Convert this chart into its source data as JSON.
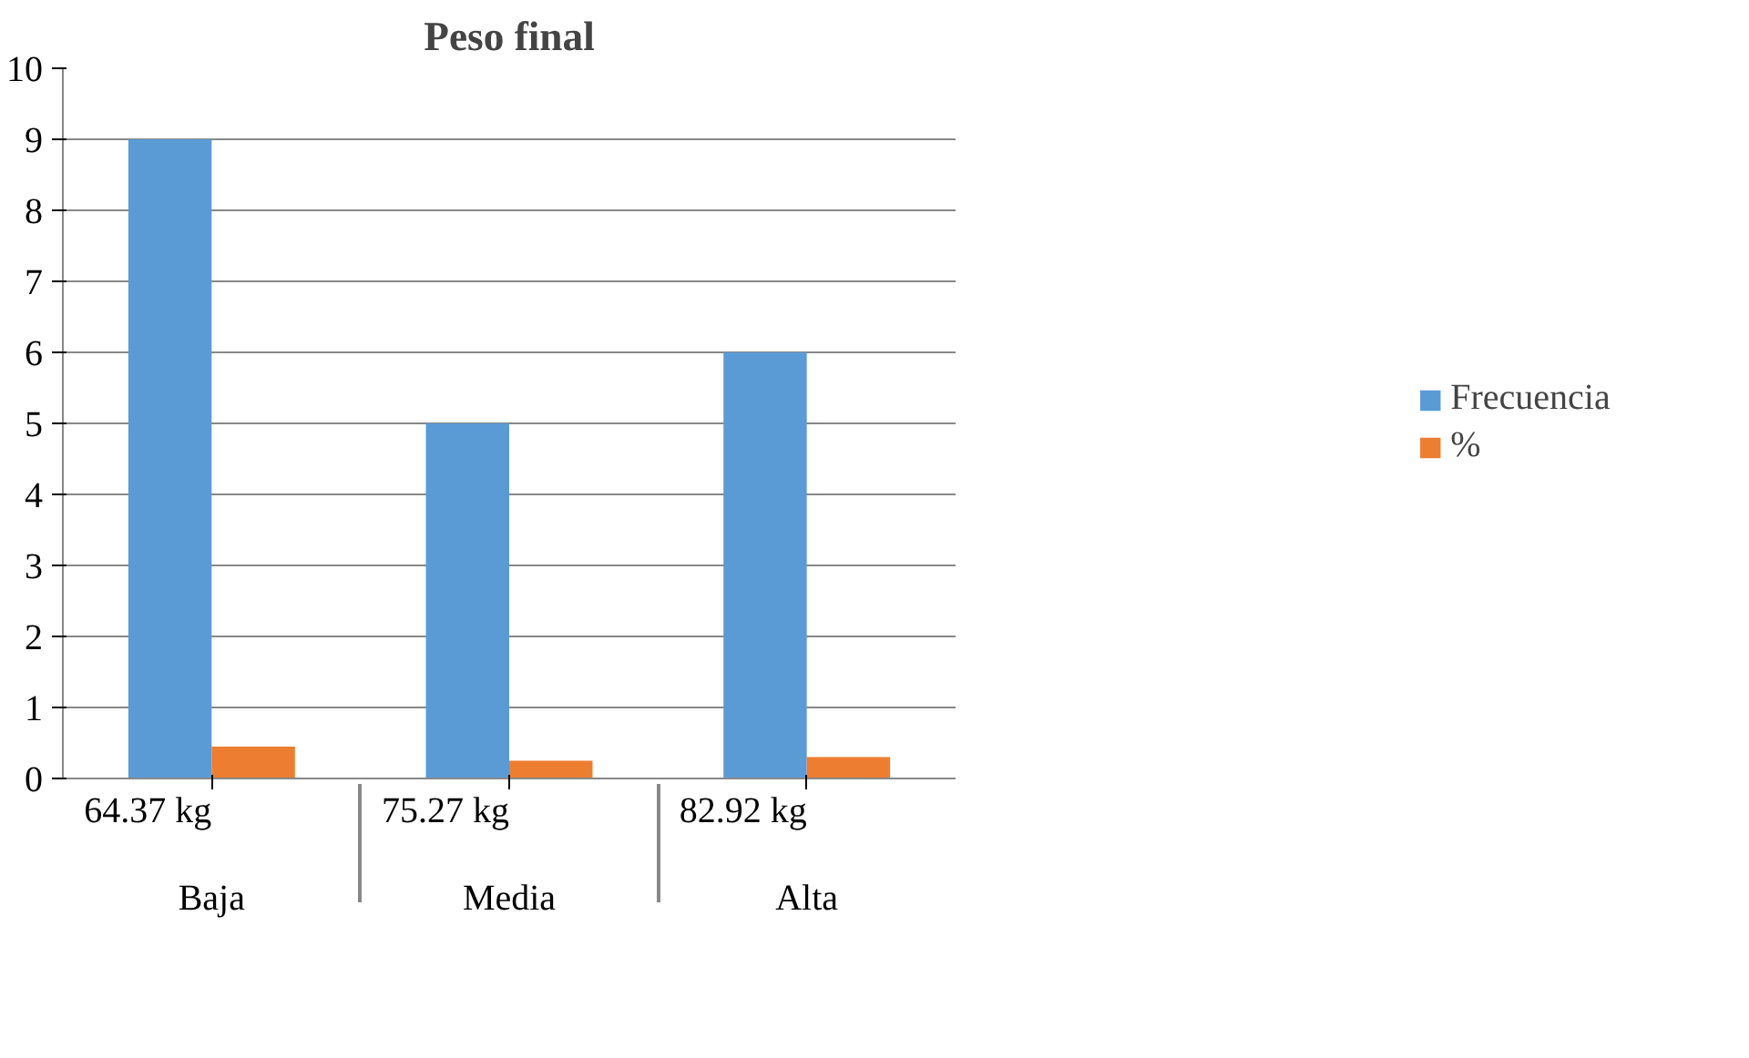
{
  "chart_data": {
    "type": "bar",
    "title": "Peso final",
    "categories": [
      "64.37 kg\nBaja",
      "75.27 kg\nMedia",
      "82.92 kg\nAlta"
    ],
    "series": [
      {
        "name": "Frecuencia",
        "color": "#5b9bd5",
        "values": [
          9,
          5,
          6
        ]
      },
      {
        "name": "%",
        "color": "#ed7d31",
        "values": [
          0.45,
          0.25,
          0.3
        ]
      }
    ],
    "ylim": [
      0,
      10
    ],
    "yticks": [
      0,
      1,
      2,
      3,
      4,
      5,
      6,
      7,
      8,
      9,
      10
    ],
    "grid": "y",
    "legend": "right"
  }
}
